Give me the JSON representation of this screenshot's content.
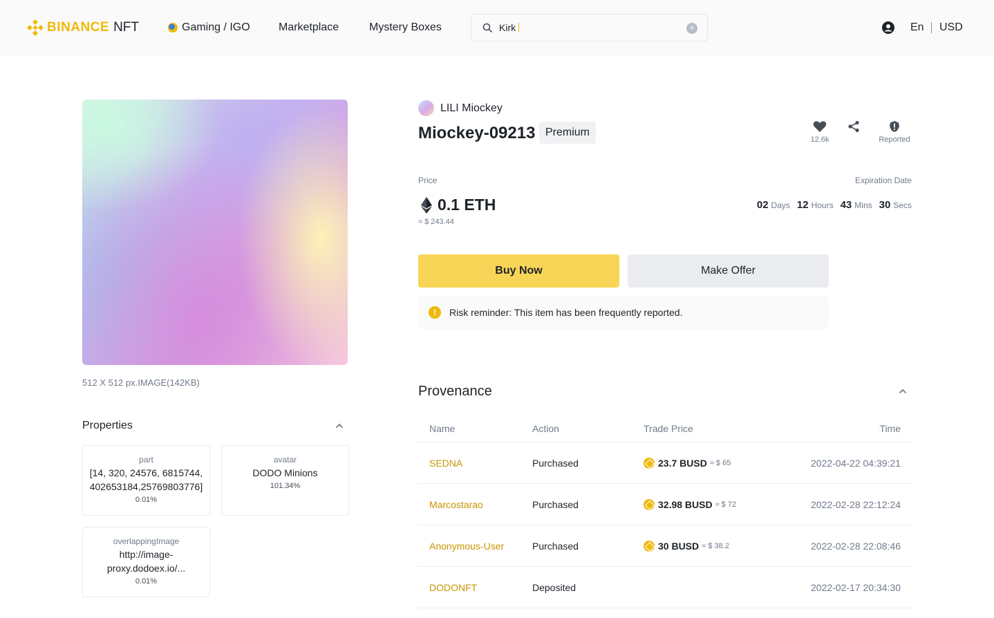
{
  "header": {
    "logo_brand": "BINANCE",
    "logo_sub": "NFT",
    "nav": [
      "Gaming / IGO",
      "Marketplace",
      "Mystery Boxes"
    ],
    "search_value": "Kirk",
    "language": "En",
    "currency": "USD"
  },
  "media": {
    "meta": "512 X 512 px.IMAGE(142KB)"
  },
  "properties": {
    "title": "Properties",
    "items": [
      {
        "key": "part",
        "value": "[14, 320, 24576, 6815744, 402653184,25769803776]",
        "rate": "0.01%"
      },
      {
        "key": "avatar",
        "value": "DODO Minions",
        "rate": "101.34%"
      },
      {
        "key": "overlappingImage",
        "value": "http://image-proxy.dodoex.io/...",
        "rate": "0.01%"
      }
    ]
  },
  "item": {
    "collection": "LILI Miockey",
    "title": "Miockey-09213",
    "badge": "Premium",
    "likes": "12.6k",
    "reported_label": "Reported"
  },
  "price": {
    "label": "Price",
    "value": "0.1 ETH",
    "usd": "≈ $ 243.44"
  },
  "expiration": {
    "label": "Expiration Date",
    "days": "02",
    "days_unit": "Days",
    "hours": "12",
    "hours_unit": "Hours",
    "mins": "43",
    "mins_unit": "Mins",
    "secs": "30",
    "secs_unit": "Secs"
  },
  "buttons": {
    "buy": "Buy Now",
    "offer": "Make Offer"
  },
  "risk": {
    "text": "Risk reminder: This item has been frequently reported."
  },
  "provenance": {
    "title": "Provenance",
    "columns": [
      "Name",
      "Action",
      "Trade Price",
      "Time"
    ],
    "rows": [
      {
        "name": "SEDNA",
        "action": "Purchased",
        "price": "23.7 BUSD",
        "usd": "≈ $ 65",
        "time": "2022-04-22 04:39:21"
      },
      {
        "name": "Marcostarao",
        "action": "Purchased",
        "price": "32.98 BUSD",
        "usd": "≈ $ 72",
        "time": "2022-02-28 22:12:24"
      },
      {
        "name": "Anonymous-User",
        "action": "Purchased",
        "price": "30 BUSD",
        "usd": "≈ $ 38.2",
        "time": "2022-02-28 22:08:46"
      },
      {
        "name": "DODONFT",
        "action": "Deposited",
        "price": "",
        "usd": "",
        "time": "2022-02-17 20:34:30"
      }
    ]
  },
  "colors": {
    "brand": "#f0b90b",
    "buy_button": "#f8d556",
    "link": "#c99400"
  }
}
